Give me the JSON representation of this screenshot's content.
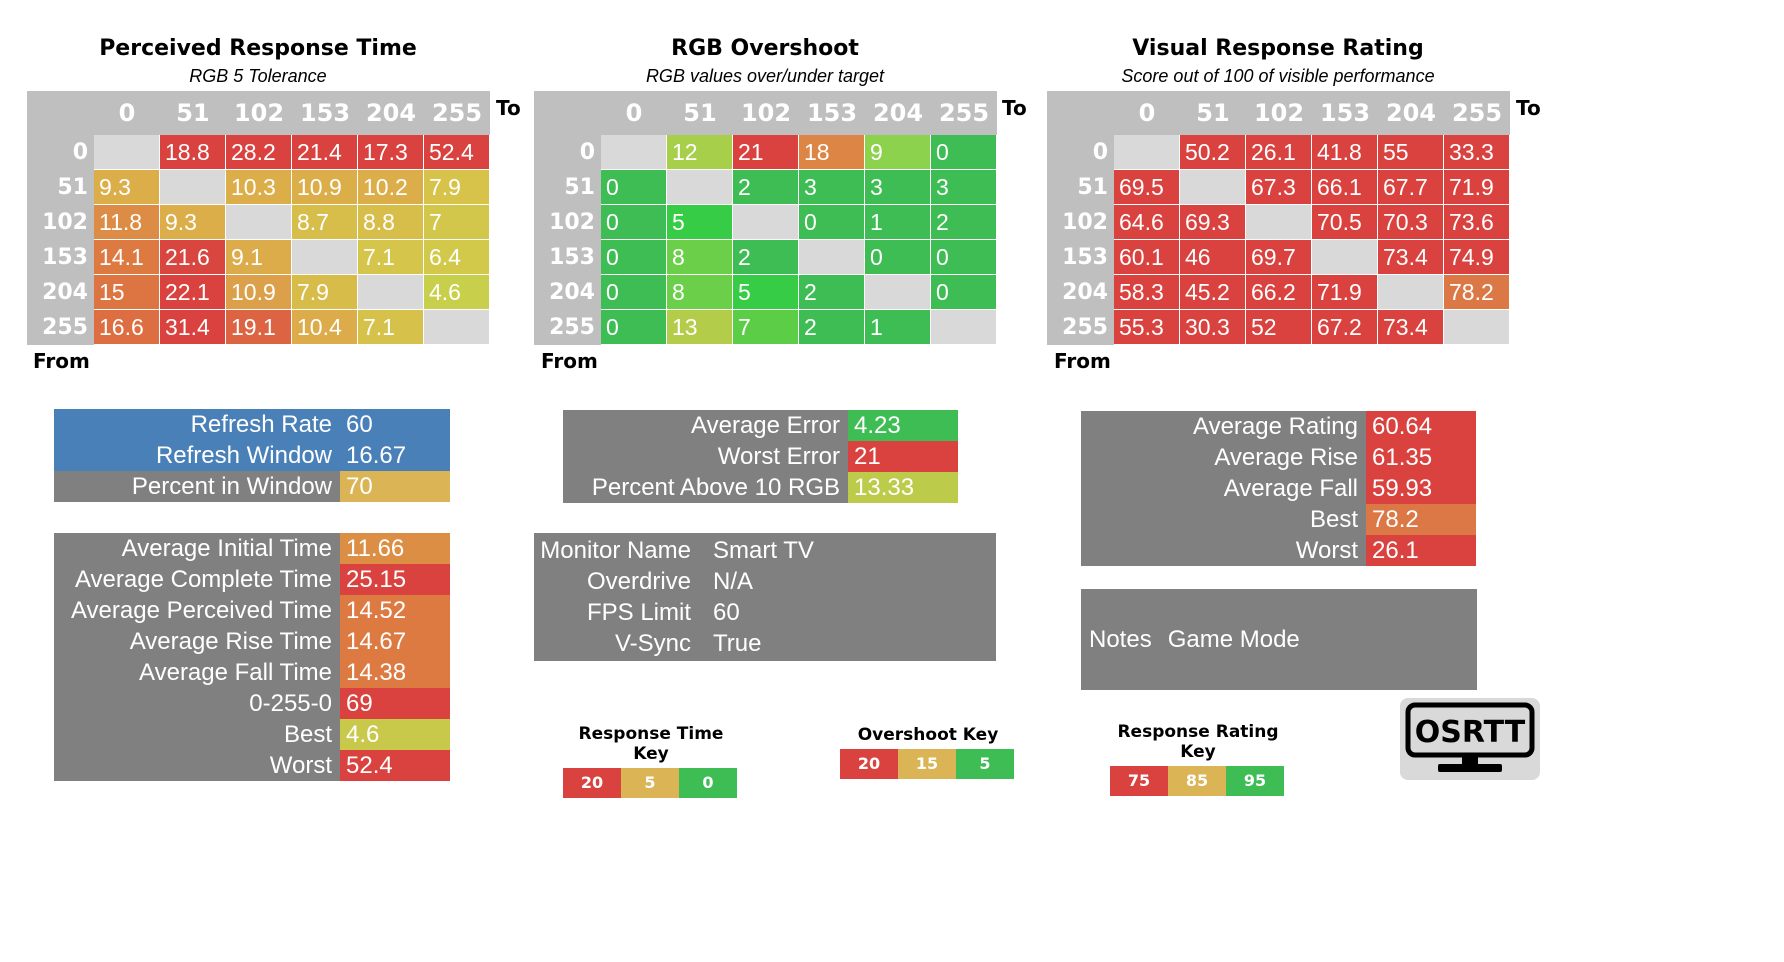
{
  "colors": {
    "red": "#d9423f",
    "redorange": "#dc5c3d",
    "orange": "#dd8a42",
    "amber": "#dca048",
    "gold": "#dbb255",
    "yellow": "#d6c24a",
    "lime": "#bccb4a",
    "lightgreen": "#8fd14c",
    "green": "#3fbd55",
    "brightgreen": "#33cc44",
    "blue": "#4a80b8",
    "grey": "#808080",
    "diag": "#d9d9d9"
  },
  "heatmaps": [
    {
      "title": "Perceived Response Time",
      "subtitle": "RGB 5 Tolerance",
      "to_label": "To",
      "from_label": "From",
      "cols": [
        "0",
        "51",
        "102",
        "153",
        "204",
        "255"
      ],
      "rows": [
        "0",
        "51",
        "102",
        "153",
        "204",
        "255"
      ],
      "cells": [
        [
          "",
          "18.8",
          "28.2",
          "21.4",
          "17.3",
          "52.4"
        ],
        [
          "9.3",
          "",
          "10.3",
          "10.9",
          "10.2",
          "7.9"
        ],
        [
          "11.8",
          "9.3",
          "",
          "8.7",
          "8.8",
          "7"
        ],
        [
          "14.1",
          "21.6",
          "9.1",
          "",
          "7.1",
          "6.4"
        ],
        [
          "15",
          "22.1",
          "10.9",
          "7.9",
          "",
          "4.6"
        ],
        [
          "16.6",
          "31.4",
          "19.1",
          "10.4",
          "7.1",
          ""
        ]
      ],
      "cell_colors": [
        [
          "#d9d9d9",
          "#d9423f",
          "#d9423f",
          "#d9423f",
          "#d9423f",
          "#d9423f"
        ],
        [
          "#dcae4a",
          "#d9d9d9",
          "#dcae4a",
          "#dcae4a",
          "#dcae4a",
          "#d7c24a"
        ],
        [
          "#dc8c44",
          "#dcae4a",
          "#d9d9d9",
          "#d7bd4a",
          "#d7bd4a",
          "#d3c74b"
        ],
        [
          "#dd7a42",
          "#d9453f",
          "#dcac4a",
          "#d9d9d9",
          "#d5c64b",
          "#d2c94b"
        ],
        [
          "#dd7542",
          "#d9423f",
          "#dca04a",
          "#d8bc4a",
          "#d9d9d9",
          "#c8cf4b"
        ],
        [
          "#dd6e42",
          "#d9423f",
          "#dd6442",
          "#dcab4a",
          "#d6c24a",
          "#d9d9d9"
        ]
      ]
    },
    {
      "title": "RGB Overshoot",
      "subtitle": "RGB values over/under target",
      "to_label": "To",
      "from_label": "From",
      "cols": [
        "0",
        "51",
        "102",
        "153",
        "204",
        "255"
      ],
      "rows": [
        "0",
        "51",
        "102",
        "153",
        "204",
        "255"
      ],
      "cells": [
        [
          "",
          "12",
          "21",
          "18",
          "9",
          "0"
        ],
        [
          "0",
          "",
          "2",
          "3",
          "3",
          "3"
        ],
        [
          "0",
          "5",
          "",
          "0",
          "1",
          "2"
        ],
        [
          "0",
          "8",
          "2",
          "",
          "0",
          "0"
        ],
        [
          "0",
          "8",
          "5",
          "2",
          "",
          "0"
        ],
        [
          "0",
          "13",
          "7",
          "2",
          "1",
          ""
        ]
      ],
      "cell_colors": [
        [
          "#d9d9d9",
          "#a8cf4a",
          "#d9423f",
          "#dd8545",
          "#8dd24c",
          "#3fbd55"
        ],
        [
          "#3fbd55",
          "#d9d9d9",
          "#3fbd55",
          "#3fbd55",
          "#3fbd55",
          "#3fbd55"
        ],
        [
          "#3fbd55",
          "#36cc45",
          "#d9d9d9",
          "#3fbd55",
          "#3fbd55",
          "#3fbd55"
        ],
        [
          "#3fbd55",
          "#6ccf49",
          "#3fbd55",
          "#d9d9d9",
          "#3fbd55",
          "#3fbd55"
        ],
        [
          "#3fbd55",
          "#6ccf49",
          "#36cc45",
          "#3fbd55",
          "#d9d9d9",
          "#3fbd55"
        ],
        [
          "#3fbd55",
          "#b3cc4a",
          "#5ccd47",
          "#3fbd55",
          "#3fbd55",
          "#d9d9d9"
        ]
      ]
    },
    {
      "title": "Visual Response Rating",
      "subtitle": "Score out of 100 of visible performance",
      "to_label": "To",
      "from_label": "From",
      "cols": [
        "0",
        "51",
        "102",
        "153",
        "204",
        "255"
      ],
      "rows": [
        "0",
        "51",
        "102",
        "153",
        "204",
        "255"
      ],
      "cells": [
        [
          "",
          "50.2",
          "26.1",
          "41.8",
          "55",
          "33.3"
        ],
        [
          "69.5",
          "",
          "67.3",
          "66.1",
          "67.7",
          "71.9"
        ],
        [
          "64.6",
          "69.3",
          "",
          "70.5",
          "70.3",
          "73.6"
        ],
        [
          "60.1",
          "46",
          "69.7",
          "",
          "73.4",
          "74.9"
        ],
        [
          "58.3",
          "45.2",
          "66.2",
          "71.9",
          "",
          "78.2"
        ],
        [
          "55.3",
          "30.3",
          "52",
          "67.2",
          "73.4",
          ""
        ]
      ],
      "cell_colors": [
        [
          "#d9d9d9",
          "#d9423f",
          "#d9423f",
          "#d9423f",
          "#d9423f",
          "#d9423f"
        ],
        [
          "#d9423f",
          "#d9d9d9",
          "#d9423f",
          "#d9423f",
          "#d9423f",
          "#d9423f"
        ],
        [
          "#d9423f",
          "#d9423f",
          "#d9d9d9",
          "#d9423f",
          "#d9423f",
          "#d9423f"
        ],
        [
          "#d9423f",
          "#d9423f",
          "#d9423f",
          "#d9d9d9",
          "#d9423f",
          "#d9423f"
        ],
        [
          "#d9423f",
          "#d9423f",
          "#d9423f",
          "#d9423f",
          "#d9d9d9",
          "#dc7845"
        ],
        [
          "#d9423f",
          "#d9423f",
          "#d9423f",
          "#d9423f",
          "#d9423f",
          "#d9d9d9"
        ]
      ]
    }
  ],
  "refresh_panel": {
    "rows": [
      {
        "label": "Refresh Rate",
        "value": "60"
      },
      {
        "label": "Refresh Window",
        "value": "16.67"
      },
      {
        "label": "Percent in Window",
        "value": "70"
      }
    ],
    "label_colors": [
      "#4a80b8",
      "#4a80b8",
      "#808080"
    ],
    "value_colors": [
      "#4a80b8",
      "#4a80b8",
      "#dbb455"
    ]
  },
  "time_panel": {
    "rows": [
      {
        "label": "Average Initial Time",
        "value": "11.66"
      },
      {
        "label": "Average Complete Time",
        "value": "25.15"
      },
      {
        "label": "Average Perceived Time",
        "value": "14.52"
      },
      {
        "label": "Average Rise Time",
        "value": "14.67"
      },
      {
        "label": "Average Fall Time",
        "value": "14.38"
      },
      {
        "label": "0-255-0",
        "value": "69"
      },
      {
        "label": "Best",
        "value": "4.6"
      },
      {
        "label": "Worst",
        "value": "52.4"
      }
    ],
    "value_colors": [
      "#dc8f44",
      "#d9423f",
      "#dd7a42",
      "#dd7a42",
      "#dd7a42",
      "#d9423f",
      "#c8c84b",
      "#d9423f"
    ]
  },
  "error_panel": {
    "rows": [
      {
        "label": "Average Error",
        "value": "4.23"
      },
      {
        "label": "Worst Error",
        "value": "21"
      },
      {
        "label": "Percent Above 10 RGB",
        "value": "13.33"
      }
    ],
    "value_colors": [
      "#3fbd55",
      "#d9423f",
      "#bccb4a"
    ]
  },
  "monitor_panel": {
    "rows": [
      {
        "label": "Monitor Name",
        "value": "Smart TV"
      },
      {
        "label": "Overdrive",
        "value": "N/A"
      },
      {
        "label": "FPS Limit",
        "value": "60"
      },
      {
        "label": "V-Sync",
        "value": "True"
      }
    ]
  },
  "rating_panel": {
    "rows": [
      {
        "label": "Average Rating",
        "value": "60.64"
      },
      {
        "label": "Average Rise",
        "value": "61.35"
      },
      {
        "label": "Average Fall",
        "value": "59.93"
      },
      {
        "label": "Best",
        "value": "78.2"
      },
      {
        "label": "Worst",
        "value": "26.1"
      }
    ],
    "value_colors": [
      "#d9423f",
      "#d9423f",
      "#d9423f",
      "#dc7845",
      "#d9423f"
    ]
  },
  "notes_panel": {
    "label": "Notes",
    "value": "Game Mode"
  },
  "keys": [
    {
      "title": "Response Time Key",
      "values": [
        "20",
        "5",
        "0"
      ],
      "colors": [
        "#d9423f",
        "#dbb455",
        "#3fbd55"
      ]
    },
    {
      "title": "Overshoot Key",
      "values": [
        "20",
        "15",
        "5"
      ],
      "colors": [
        "#d9423f",
        "#dbb455",
        "#3fbd55"
      ]
    },
    {
      "title": "Response Rating Key",
      "values": [
        "75",
        "85",
        "95"
      ],
      "colors": [
        "#d9423f",
        "#dbb455",
        "#3fbd55"
      ]
    }
  ],
  "logo": {
    "text": "OSRTT"
  },
  "chart_data": [
    {
      "type": "heatmap",
      "title": "Perceived Response Time",
      "subtitle": "RGB 5 Tolerance",
      "xlabel": "To",
      "ylabel": "From",
      "x": [
        "0",
        "51",
        "102",
        "153",
        "204",
        "255"
      ],
      "y": [
        "0",
        "51",
        "102",
        "153",
        "204",
        "255"
      ],
      "values": [
        [
          null,
          18.8,
          28.2,
          21.4,
          17.3,
          52.4
        ],
        [
          9.3,
          null,
          10.3,
          10.9,
          10.2,
          7.9
        ],
        [
          11.8,
          9.3,
          null,
          8.7,
          8.8,
          7
        ],
        [
          14.1,
          21.6,
          9.1,
          null,
          7.1,
          6.4
        ],
        [
          15,
          22.1,
          10.9,
          7.9,
          null,
          4.6
        ],
        [
          16.6,
          31.4,
          19.1,
          10.4,
          7.1,
          null
        ]
      ]
    },
    {
      "type": "heatmap",
      "title": "RGB Overshoot",
      "subtitle": "RGB values over/under target",
      "xlabel": "To",
      "ylabel": "From",
      "x": [
        "0",
        "51",
        "102",
        "153",
        "204",
        "255"
      ],
      "y": [
        "0",
        "51",
        "102",
        "153",
        "204",
        "255"
      ],
      "values": [
        [
          null,
          12,
          21,
          18,
          9,
          0
        ],
        [
          0,
          null,
          2,
          3,
          3,
          3
        ],
        [
          0,
          5,
          null,
          0,
          1,
          2
        ],
        [
          0,
          8,
          2,
          null,
          0,
          0
        ],
        [
          0,
          8,
          5,
          2,
          null,
          0
        ],
        [
          0,
          13,
          7,
          2,
          1,
          null
        ]
      ]
    },
    {
      "type": "heatmap",
      "title": "Visual Response Rating",
      "subtitle": "Score out of 100 of visible performance",
      "xlabel": "To",
      "ylabel": "From",
      "x": [
        "0",
        "51",
        "102",
        "153",
        "204",
        "255"
      ],
      "y": [
        "0",
        "51",
        "102",
        "153",
        "204",
        "255"
      ],
      "values": [
        [
          null,
          50.2,
          26.1,
          41.8,
          55,
          33.3
        ],
        [
          69.5,
          null,
          67.3,
          66.1,
          67.7,
          71.9
        ],
        [
          64.6,
          69.3,
          null,
          70.5,
          70.3,
          73.6
        ],
        [
          60.1,
          46,
          69.7,
          null,
          73.4,
          74.9
        ],
        [
          58.3,
          45.2,
          66.2,
          71.9,
          null,
          78.2
        ],
        [
          55.3,
          30.3,
          52,
          67.2,
          73.4,
          null
        ]
      ]
    }
  ]
}
